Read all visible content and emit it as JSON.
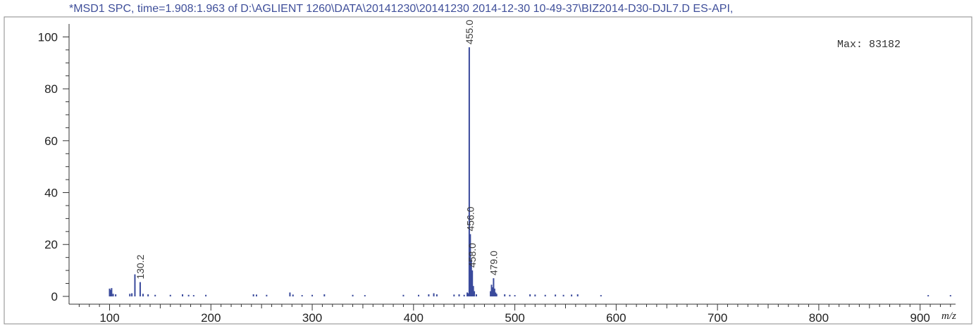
{
  "chart_data": {
    "type": "bar",
    "title": "*MSD1 SPC, time=1.908:1.963 of D:\\AGLIENT 1260\\DATA\\20141230\\20141230 2014-12-30 10-49-37\\BIZ2014-D30-DJL7.D    ES-API,",
    "xlabel": "m/z",
    "ylabel": "",
    "xlim": [
      60,
      935
    ],
    "ylim": [
      -3,
      105
    ],
    "x_ticks": [
      100,
      200,
      300,
      400,
      500,
      600,
      700,
      800,
      900
    ],
    "y_ticks": [
      0,
      20,
      40,
      60,
      80,
      100
    ],
    "max_text": "Max: 83182",
    "bar_color": "#3a4a9c",
    "grid": false,
    "peak_labels": [
      {
        "mz": 130.2,
        "text": "130.2",
        "y": 5.5
      },
      {
        "mz": 455.0,
        "text": "455.0",
        "y": 96
      },
      {
        "mz": 456.0,
        "text": "456.0",
        "y": 24
      },
      {
        "mz": 458.0,
        "text": "458.0",
        "y": 10
      },
      {
        "mz": 479.0,
        "text": "479.0",
        "y": 7
      }
    ],
    "peaks": [
      {
        "mz": 100.0,
        "y": 3.0
      },
      {
        "mz": 101.0,
        "y": 2.5
      },
      {
        "mz": 102.0,
        "y": 3.2
      },
      {
        "mz": 103.5,
        "y": 1.0
      },
      {
        "mz": 106.0,
        "y": 0.8
      },
      {
        "mz": 120.0,
        "y": 1.0
      },
      {
        "mz": 122.0,
        "y": 1.2
      },
      {
        "mz": 125.0,
        "y": 8.5
      },
      {
        "mz": 130.2,
        "y": 5.5
      },
      {
        "mz": 133.0,
        "y": 1.0
      },
      {
        "mz": 138.0,
        "y": 0.8
      },
      {
        "mz": 145.0,
        "y": 0.6
      },
      {
        "mz": 160.0,
        "y": 0.6
      },
      {
        "mz": 172.0,
        "y": 0.8
      },
      {
        "mz": 178.0,
        "y": 0.6
      },
      {
        "mz": 183.0,
        "y": 0.5
      },
      {
        "mz": 195.0,
        "y": 0.6
      },
      {
        "mz": 242.0,
        "y": 0.8
      },
      {
        "mz": 245.0,
        "y": 0.7
      },
      {
        "mz": 255.0,
        "y": 0.6
      },
      {
        "mz": 278.0,
        "y": 1.5
      },
      {
        "mz": 281.0,
        "y": 0.7
      },
      {
        "mz": 290.0,
        "y": 0.5
      },
      {
        "mz": 300.0,
        "y": 0.6
      },
      {
        "mz": 312.0,
        "y": 0.8
      },
      {
        "mz": 340.0,
        "y": 0.6
      },
      {
        "mz": 352.0,
        "y": 0.5
      },
      {
        "mz": 390.0,
        "y": 0.6
      },
      {
        "mz": 405.0,
        "y": 0.6
      },
      {
        "mz": 415.0,
        "y": 0.8
      },
      {
        "mz": 420.0,
        "y": 1.2
      },
      {
        "mz": 423.0,
        "y": 0.8
      },
      {
        "mz": 440.0,
        "y": 0.7
      },
      {
        "mz": 445.0,
        "y": 0.8
      },
      {
        "mz": 450.0,
        "y": 0.6
      },
      {
        "mz": 453.0,
        "y": 1.5
      },
      {
        "mz": 454.0,
        "y": 1.2
      },
      {
        "mz": 455.0,
        "y": 96.0
      },
      {
        "mz": 456.0,
        "y": 24.0
      },
      {
        "mz": 457.0,
        "y": 14.0
      },
      {
        "mz": 458.0,
        "y": 10.0
      },
      {
        "mz": 459.0,
        "y": 4.0
      },
      {
        "mz": 460.0,
        "y": 2.0
      },
      {
        "mz": 462.0,
        "y": 0.8
      },
      {
        "mz": 476.0,
        "y": 2.0
      },
      {
        "mz": 477.0,
        "y": 4.5
      },
      {
        "mz": 478.0,
        "y": 3.5
      },
      {
        "mz": 479.0,
        "y": 7.0
      },
      {
        "mz": 480.0,
        "y": 3.0
      },
      {
        "mz": 481.0,
        "y": 1.5
      },
      {
        "mz": 482.0,
        "y": 1.0
      },
      {
        "mz": 490.0,
        "y": 0.8
      },
      {
        "mz": 495.0,
        "y": 0.6
      },
      {
        "mz": 500.0,
        "y": 0.5
      },
      {
        "mz": 515.0,
        "y": 0.8
      },
      {
        "mz": 520.0,
        "y": 0.7
      },
      {
        "mz": 530.0,
        "y": 0.6
      },
      {
        "mz": 540.0,
        "y": 0.7
      },
      {
        "mz": 548.0,
        "y": 0.6
      },
      {
        "mz": 556.0,
        "y": 0.7
      },
      {
        "mz": 562.0,
        "y": 0.8
      },
      {
        "mz": 585.0,
        "y": 0.5
      },
      {
        "mz": 908.0,
        "y": 0.5
      },
      {
        "mz": 930.0,
        "y": 0.5
      }
    ]
  }
}
